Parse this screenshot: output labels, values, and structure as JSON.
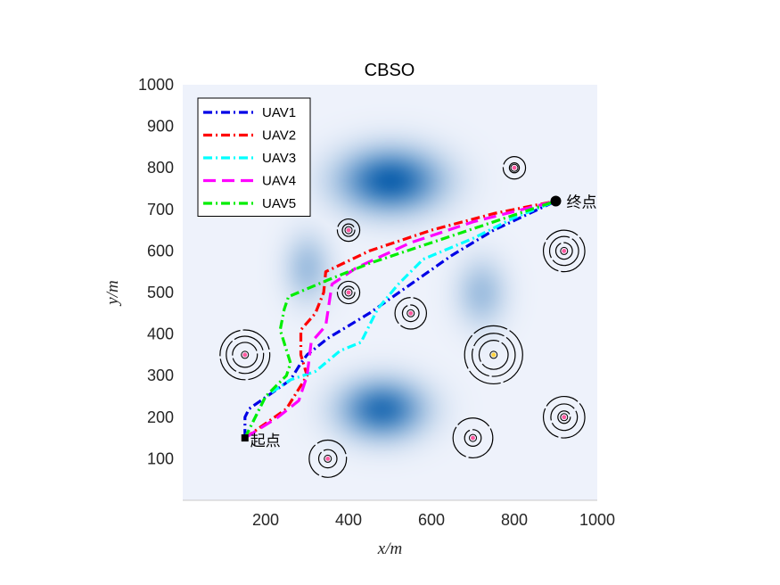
{
  "chart_data": {
    "type": "line",
    "title": "CBSO",
    "xlabel": "x/m",
    "ylabel": "y/m",
    "xlim": [
      0,
      1000
    ],
    "ylim": [
      0,
      1000
    ],
    "xticks": [
      200,
      400,
      600,
      800,
      1000
    ],
    "yticks": [
      100,
      200,
      300,
      400,
      500,
      600,
      700,
      800,
      900,
      1000
    ],
    "grid": false,
    "legend_position": "top-left",
    "start": {
      "label": "起点",
      "x": 150,
      "y": 150
    },
    "end": {
      "label": "终点",
      "x": 900,
      "y": 720
    },
    "terrain_peaks": [
      {
        "x": 500,
        "y": 770,
        "amplitude": 1.0,
        "spread_x": 120,
        "spread_y": 75
      },
      {
        "x": 480,
        "y": 220,
        "amplitude": 0.9,
        "spread_x": 100,
        "spread_y": 70
      },
      {
        "x": 300,
        "y": 560,
        "amplitude": 0.35,
        "spread_x": 55,
        "spread_y": 80
      },
      {
        "x": 720,
        "y": 500,
        "amplitude": 0.35,
        "spread_x": 60,
        "spread_y": 80
      }
    ],
    "threats": [
      {
        "x": 150,
        "y": 350,
        "rings": [
          30,
          45,
          60
        ],
        "dot_color": "#ff5aa0"
      },
      {
        "x": 400,
        "y": 650,
        "rings": [
          15,
          27
        ],
        "dot_color": "#ff5aa0"
      },
      {
        "x": 400,
        "y": 500,
        "rings": [
          15,
          27
        ],
        "dot_color": "#ff5aa0"
      },
      {
        "x": 550,
        "y": 450,
        "rings": [
          20,
          38
        ],
        "dot_color": "#ff5aa0"
      },
      {
        "x": 350,
        "y": 100,
        "rings": [
          22,
          45
        ],
        "dot_color": "#ff5aa0"
      },
      {
        "x": 700,
        "y": 150,
        "rings": [
          20,
          48
        ],
        "dot_color": "#ff5aa0"
      },
      {
        "x": 750,
        "y": 350,
        "rings": [
          35,
          52,
          70
        ],
        "dot_color": "#ffd23c"
      },
      {
        "x": 800,
        "y": 800,
        "rings": [
          12,
          27
        ],
        "dot_color": "#ff5aa0"
      },
      {
        "x": 920,
        "y": 600,
        "rings": [
          20,
          35,
          50
        ],
        "dot_color": "#ff5aa0"
      },
      {
        "x": 920,
        "y": 200,
        "rings": [
          15,
          32,
          50
        ],
        "dot_color": "#ff5aa0"
      }
    ],
    "series": [
      {
        "name": "UAV1",
        "color": "#0000e6",
        "dash": "10,4,2,4",
        "x": [
          150,
          150,
          160,
          260,
          285,
          300,
          350,
          450,
          550,
          650,
          750,
          900
        ],
        "y": [
          150,
          200,
          220,
          290,
          330,
          350,
          390,
          450,
          520,
          590,
          650,
          720
        ]
      },
      {
        "name": "UAV2",
        "color": "#ff0000",
        "dash": "10,4,2,4",
        "x": [
          150,
          250,
          300,
          285,
          285,
          320,
          340,
          345,
          450,
          600,
          750,
          900
        ],
        "y": [
          150,
          220,
          300,
          350,
          410,
          450,
          500,
          550,
          600,
          650,
          690,
          720
        ]
      },
      {
        "name": "UAV3",
        "color": "#00ffff",
        "dash": "10,4,2,4",
        "x": [
          150,
          200,
          260,
          320,
          380,
          430,
          470,
          520,
          580,
          700,
          800,
          900
        ],
        "y": [
          150,
          250,
          290,
          310,
          360,
          380,
          460,
          520,
          580,
          630,
          680,
          720
        ]
      },
      {
        "name": "UAV4",
        "color": "#ff00ff",
        "dash": "14,7",
        "x": [
          150,
          230,
          280,
          300,
          310,
          345,
          360,
          420,
          550,
          700,
          900
        ],
        "y": [
          150,
          200,
          240,
          300,
          380,
          420,
          520,
          560,
          620,
          670,
          720
        ]
      },
      {
        "name": "UAV5",
        "color": "#00ee00",
        "dash": "10,4,2,4",
        "x": [
          150,
          200,
          250,
          260,
          235,
          245,
          255,
          350,
          450,
          600,
          750,
          900
        ],
        "y": [
          150,
          250,
          300,
          330,
          410,
          460,
          490,
          530,
          570,
          620,
          670,
          720
        ]
      }
    ]
  }
}
